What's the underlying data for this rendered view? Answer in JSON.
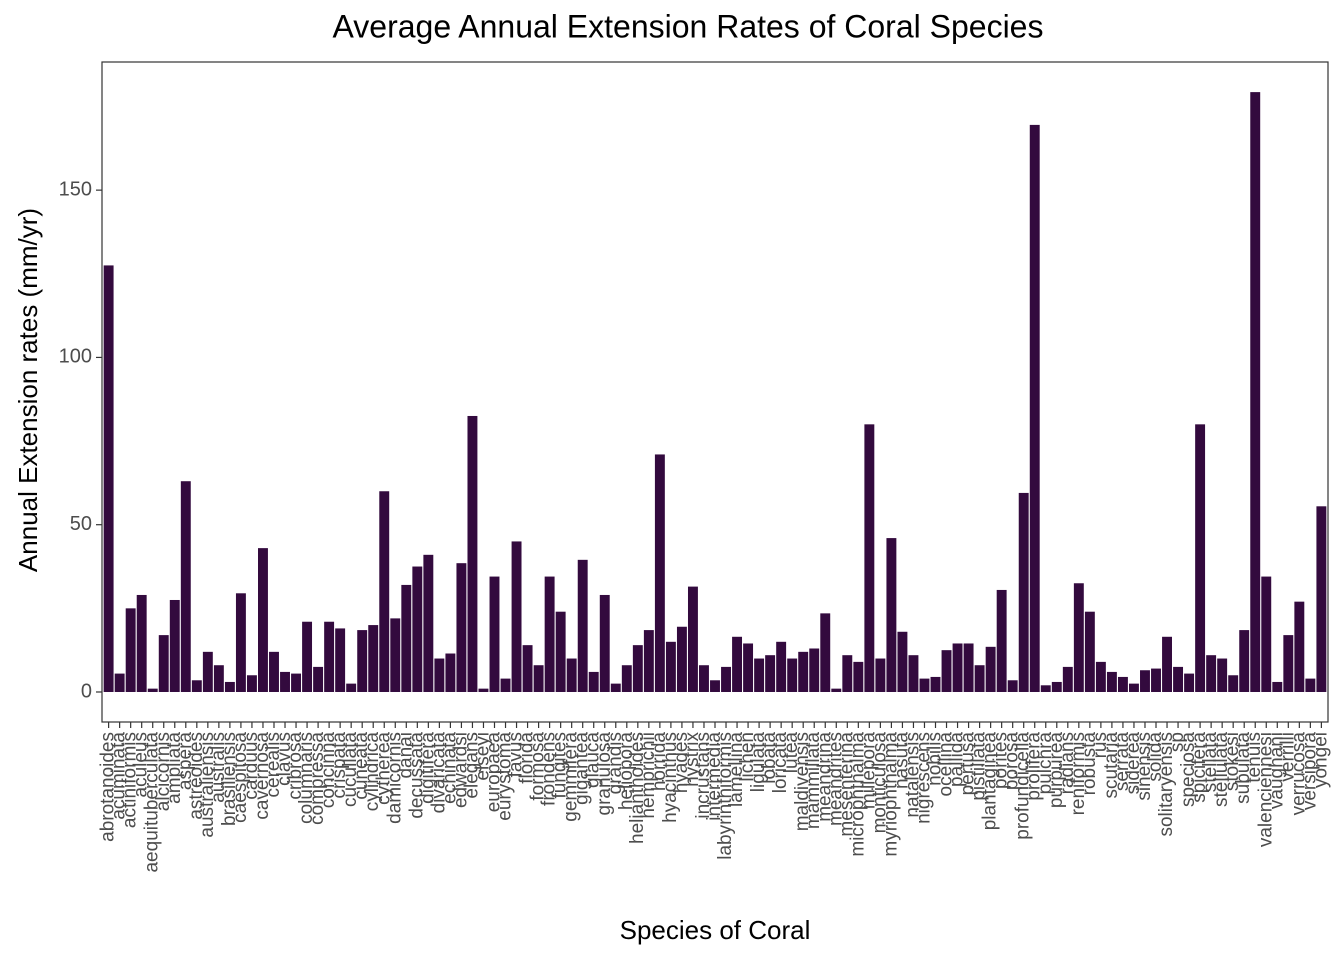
{
  "chart_data": {
    "type": "bar",
    "title": "Average Annual Extension Rates of Coral Species",
    "x_label": "Species of Coral",
    "y_label": "Annual Extension rates (mm/yr)",
    "color": "#330a3e",
    "ylim": [
      -8.97,
      188.3
    ],
    "yticks": [
      0,
      50,
      100,
      150
    ],
    "categories": [
      "abrotanoides",
      "acuminata",
      "actiniformis",
      "aculeus",
      "aequituberculata",
      "alcicornis",
      "ampliata",
      "aspera",
      "astreoides",
      "australiensis",
      "australis",
      "brasiliensis",
      "caespitosa",
      "carduus",
      "cavernosa",
      "cerealis",
      "clavus",
      "cribrosa",
      "columnaris",
      "compressa",
      "concinna",
      "crispata",
      "cucullata",
      "cuneata",
      "cylindrica",
      "cytherea",
      "damicornis",
      "danai",
      "decussata",
      "digitifera",
      "divaricata",
      "echinata",
      "edwardsi",
      "elegans",
      "elseyi",
      "europaea",
      "eurystoma",
      "favus",
      "florida",
      "formosa",
      "frondens",
      "fungites",
      "gemmifera",
      "gigantea",
      "glauca",
      "granulosa",
      "grandis",
      "heliopora",
      "helianthoides",
      "hemprichii",
      "horrida",
      "hyacinthus",
      "hyades",
      "hystrix",
      "incrustans",
      "intermedia",
      "labyrinthiformis",
      "lamellina",
      "lichen",
      "ligulata",
      "lobata",
      "loricata",
      "lutea",
      "maldivensis",
      "mammillata",
      "meandrina",
      "meandrites",
      "mesenterina",
      "microphthalma",
      "millepora",
      "monticulosa",
      "myriophthalma",
      "nasuta",
      "natalensis",
      "nigrescens",
      "nobilis",
      "ocellina",
      "pallida",
      "pertusa",
      "pistillata",
      "plantaginea",
      "porites",
      "porosa",
      "profundicella",
      "prolifera",
      "pulchra",
      "purpurea",
      "radians",
      "reniformis",
      "robusta",
      "rus",
      "scutaria",
      "serrata",
      "siderea",
      "sinensis",
      "solida",
      "solitaryensis",
      "sp",
      "speciosa",
      "spicifera",
      "stellata",
      "stellulata",
      "stokesi",
      "subulata",
      "tenuis",
      "valenciennesi",
      "vaughani",
      "verrilli",
      "verrucosa",
      "versipora",
      "yongei"
    ],
    "values": [
      127.5,
      5.5,
      25,
      29,
      1,
      17,
      27.5,
      63,
      3.5,
      12,
      8,
      3,
      29.5,
      5,
      43,
      12,
      6,
      5.5,
      21,
      7.5,
      21,
      19,
      2.5,
      18.5,
      20,
      60,
      22,
      32,
      37.5,
      41,
      10,
      11.5,
      38.5,
      82.5,
      1,
      34.5,
      4,
      45,
      14,
      8,
      34.5,
      24,
      10,
      39.5,
      6,
      29,
      2.5,
      8,
      14,
      18.5,
      71,
      15,
      19.5,
      31.5,
      8,
      3.5,
      7.5,
      16.5,
      14.5,
      10,
      11,
      15,
      10,
      12,
      13,
      23.5,
      1,
      11,
      9,
      80,
      10,
      46,
      18,
      11,
      4,
      4.5,
      12.5,
      14.5,
      14.5,
      8,
      13.5,
      30.5,
      3.5,
      59.5,
      169.5,
      2,
      3,
      7.5,
      32.5,
      24,
      9,
      6,
      4.5,
      2.5,
      6.5,
      7,
      16.5,
      7.5,
      5.5,
      80,
      11,
      10,
      5,
      18.5,
      179.3,
      34.5,
      3,
      17,
      27,
      4,
      55.5
    ]
  }
}
